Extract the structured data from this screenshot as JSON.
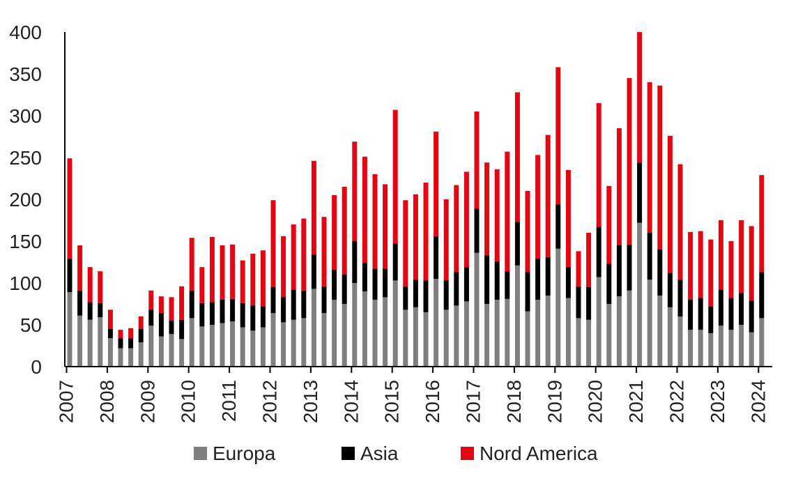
{
  "chart_data": {
    "type": "bar",
    "stacked": true,
    "title": "",
    "xlabel": "",
    "ylabel": "",
    "ylim": [
      0,
      400
    ],
    "yticks": [
      0,
      50,
      100,
      150,
      200,
      250,
      300,
      350,
      400
    ],
    "xtick_labels": [
      "2007",
      "2008",
      "2009",
      "2010",
      "2011",
      "2012",
      "2013",
      "2014",
      "2015",
      "2016",
      "2017",
      "2018",
      "2019",
      "2020",
      "2021",
      "2022",
      "2023",
      "2024"
    ],
    "grid": false,
    "legend_position": "bottom",
    "series": [
      {
        "name": "Europa",
        "color": "#7f7f7f",
        "values": [
          89,
          61,
          56,
          59,
          34,
          22,
          22,
          29,
          49,
          36,
          39,
          33,
          58,
          48,
          50,
          52,
          54,
          47,
          43,
          47,
          64,
          53,
          56,
          58,
          93,
          64,
          80,
          75,
          100,
          90,
          80,
          83,
          103,
          68,
          71,
          65,
          105,
          68,
          73,
          78,
          136,
          75,
          80,
          81,
          121,
          66,
          80,
          85,
          141,
          82,
          58,
          56,
          107,
          75,
          84,
          91,
          172,
          104,
          85,
          71,
          60,
          44,
          44,
          40,
          49,
          44,
          50,
          41,
          58
        ]
      },
      {
        "name": "Asia",
        "color": "#000000",
        "values": [
          40,
          30,
          21,
          17,
          11,
          12,
          12,
          16,
          19,
          28,
          16,
          23,
          33,
          28,
          27,
          28,
          27,
          29,
          30,
          25,
          31,
          30,
          36,
          33,
          41,
          32,
          36,
          35,
          50,
          34,
          37,
          34,
          44,
          28,
          33,
          38,
          51,
          35,
          40,
          41,
          53,
          58,
          46,
          33,
          52,
          47,
          49,
          46,
          53,
          37,
          38,
          39,
          60,
          48,
          61,
          55,
          72,
          56,
          55,
          41,
          44,
          36,
          38,
          32,
          43,
          38,
          38,
          38,
          55
        ]
      },
      {
        "name": "Nord America",
        "color": "#e30613",
        "values": [
          120,
          54,
          42,
          38,
          23,
          10,
          12,
          15,
          23,
          20,
          28,
          40,
          63,
          43,
          78,
          65,
          65,
          51,
          62,
          67,
          104,
          73,
          78,
          86,
          112,
          83,
          89,
          105,
          119,
          127,
          113,
          101,
          160,
          103,
          102,
          117,
          125,
          97,
          104,
          114,
          116,
          111,
          110,
          143,
          155,
          97,
          124,
          146,
          164,
          116,
          42,
          65,
          148,
          93,
          140,
          199,
          156,
          180,
          196,
          164,
          138,
          81,
          80,
          80,
          83,
          68,
          87,
          89,
          116
        ]
      }
    ]
  },
  "legend": [
    {
      "label": "Europa",
      "color": "#7f7f7f"
    },
    {
      "label": "Asia",
      "color": "#000000"
    },
    {
      "label": "Nord America",
      "color": "#e30613"
    }
  ]
}
